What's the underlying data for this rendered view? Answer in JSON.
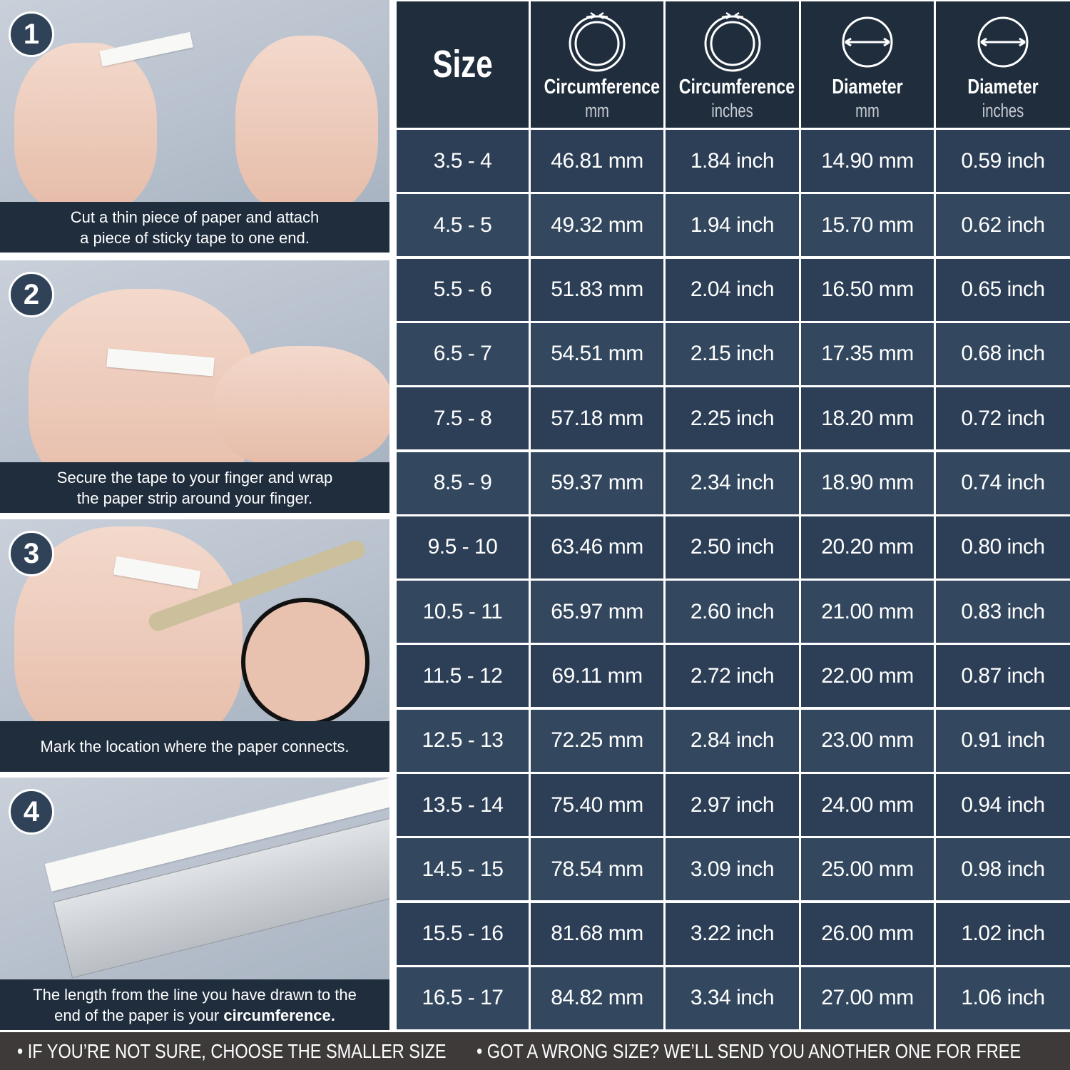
{
  "steps": [
    {
      "number": "1",
      "caption_lines": [
        "Cut a thin piece of paper and attach",
        "a piece of sticky tape to one end."
      ]
    },
    {
      "number": "2",
      "caption_lines": [
        "Secure the tape to your finger and wrap",
        "the paper strip around your finger."
      ]
    },
    {
      "number": "3",
      "caption_lines": [
        "Mark the location where the paper connects."
      ]
    },
    {
      "number": "4",
      "caption_lines": [
        "The length from the line you have drawn to the",
        "end of the paper is your "
      ],
      "caption_bold": "circumference."
    }
  ],
  "table": {
    "header": {
      "size": "Size",
      "columns": [
        {
          "title": "Circumference",
          "unit": "mm",
          "icon": "circumference-icon"
        },
        {
          "title": "Circumference",
          "unit": "inches",
          "icon": "circumference-icon"
        },
        {
          "title": "Diameter",
          "unit": "mm",
          "icon": "diameter-icon"
        },
        {
          "title": "Diameter",
          "unit": "inches",
          "icon": "diameter-icon"
        }
      ]
    },
    "rows": [
      [
        "3.5 - 4",
        "46.81 mm",
        "1.84 inch",
        "14.90 mm",
        "0.59 inch"
      ],
      [
        "4.5 - 5",
        "49.32 mm",
        "1.94 inch",
        "15.70 mm",
        "0.62 inch"
      ],
      [
        "5.5 - 6",
        "51.83 mm",
        "2.04 inch",
        "16.50 mm",
        "0.65 inch"
      ],
      [
        "6.5 - 7",
        "54.51 mm",
        "2.15 inch",
        "17.35 mm",
        "0.68 inch"
      ],
      [
        "7.5 - 8",
        "57.18 mm",
        "2.25 inch",
        "18.20 mm",
        "0.72 inch"
      ],
      [
        "8.5 - 9",
        "59.37 mm",
        "2.34 inch",
        "18.90 mm",
        "0.74 inch"
      ],
      [
        "9.5 - 10",
        "63.46 mm",
        "2.50 inch",
        "20.20 mm",
        "0.80 inch"
      ],
      [
        "10.5 - 11",
        "65.97 mm",
        "2.60 inch",
        "21.00 mm",
        "0.83 inch"
      ],
      [
        "11.5 - 12",
        "69.11 mm",
        "2.72 inch",
        "22.00 mm",
        "0.87 inch"
      ],
      [
        "12.5 - 13",
        "72.25 mm",
        "2.84 inch",
        "23.00 mm",
        "0.91 inch"
      ],
      [
        "13.5 - 14",
        "75.40 mm",
        "2.97 inch",
        "24.00 mm",
        "0.94 inch"
      ],
      [
        "14.5 - 15",
        "78.54 mm",
        "3.09 inch",
        "25.00 mm",
        "0.98 inch"
      ],
      [
        "15.5 - 16",
        "81.68 mm",
        "3.22 inch",
        "26.00 mm",
        "1.02 inch"
      ],
      [
        "16.5 - 17",
        "84.82 mm",
        "3.34 inch",
        "27.00 mm",
        "1.06 inch"
      ]
    ]
  },
  "footer": {
    "notes": [
      "• IF YOU’RE NOT SURE, CHOOSE THE SMALLER SIZE",
      "• GOT A WRONG SIZE? WE’LL SEND YOU ANOTHER ONE FOR FREE"
    ]
  },
  "colors": {
    "header_bg": "#1f2d3d",
    "row_bg_a": "#2c3f56",
    "row_bg_b": "#33485f",
    "footer_bg": "#3e3a3a",
    "caption_bg": "#1f2d3d"
  }
}
